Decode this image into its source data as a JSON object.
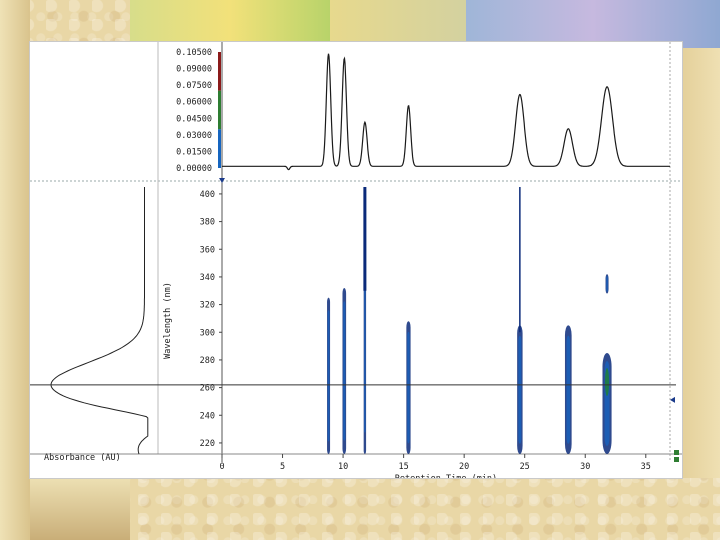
{
  "colors": {
    "background": "#ffffff",
    "trace": "#1a1a1a",
    "contour_dark": "#0a2a7a",
    "contour_mid": "#1b5fb8",
    "contour_core": "#1e7a4a",
    "axis_markers": [
      "#8b1a1a",
      "#2e7d32",
      "#1565c0"
    ]
  },
  "chart_data": [
    {
      "type": "line",
      "role": "top chromatogram trace",
      "x_range": [
        0,
        37
      ],
      "ylim": [
        0.0,
        0.105
      ],
      "y_tick_labels": [
        "0.10500",
        "0.09000",
        "0.07500",
        "0.06000",
        "0.04500",
        "0.03000",
        "0.01500",
        "0.00000"
      ],
      "y_ticks": [
        0.105,
        0.09,
        0.075,
        0.06,
        0.045,
        0.03,
        0.015,
        0.0
      ],
      "peaks": [
        {
          "rt": 8.8,
          "height": 0.102
        },
        {
          "rt": 10.1,
          "height": 0.098
        },
        {
          "rt": 11.8,
          "height": 0.04
        },
        {
          "rt": 15.4,
          "height": 0.055
        },
        {
          "rt": 24.6,
          "height": 0.065
        },
        {
          "rt": 28.6,
          "height": 0.034
        },
        {
          "rt": 31.8,
          "height": 0.072
        }
      ],
      "baseline": 0.0015
    },
    {
      "type": "line",
      "role": "left absorbance spectrum",
      "xlabel": "Absorbance (AU)",
      "ylim": [
        210,
        405
      ],
      "features": {
        "max_nm": 262,
        "min_nm": 236,
        "shoulder_nm": 300
      }
    },
    {
      "type": "heatmap",
      "role": "contour plot",
      "xlabel": "Retention Time (min)",
      "ylabel": "Wavelength (nm)",
      "xlim": [
        0,
        37
      ],
      "ylim": [
        212,
        405
      ],
      "x_ticks": [
        0,
        5,
        10,
        15,
        20,
        25,
        30,
        35
      ],
      "x_tick_labels": [
        "0",
        "5",
        "10",
        "15",
        "20",
        "25",
        "30",
        "35"
      ],
      "y_ticks": [
        220,
        240,
        260,
        280,
        300,
        320,
        340,
        360,
        380,
        400
      ],
      "y_tick_labels": [
        "220",
        "240",
        "260",
        "280",
        "300",
        "320",
        "340",
        "360",
        "380",
        "400"
      ],
      "reference_wavelength": 262,
      "bands": [
        {
          "rt": 8.8,
          "wl_min": 212,
          "wl_max": 325,
          "width": 0.25,
          "intensity": 0.6
        },
        {
          "rt": 10.1,
          "wl_min": 212,
          "wl_max": 332,
          "width": 0.3,
          "intensity": 0.6
        },
        {
          "rt": 11.8,
          "wl_min": 212,
          "wl_max": 405,
          "width": 0.2,
          "intensity": 0.5
        },
        {
          "rt": 15.4,
          "wl_min": 212,
          "wl_max": 308,
          "width": 0.35,
          "intensity": 0.6
        },
        {
          "rt": 24.6,
          "wl_min": 212,
          "wl_max": 305,
          "width": 0.45,
          "intensity": 0.8
        },
        {
          "rt": 28.6,
          "wl_min": 212,
          "wl_max": 305,
          "width": 0.55,
          "intensity": 0.85
        },
        {
          "rt": 31.8,
          "wl_min": 212,
          "wl_max": 285,
          "width": 0.75,
          "intensity": 1.0
        },
        {
          "rt": 31.8,
          "wl_min": 328,
          "wl_max": 342,
          "width": 0.25,
          "intensity": 0.7
        }
      ],
      "vertical_lines": [
        {
          "rt": 11.8,
          "wl_min": 330,
          "wl_max": 405
        },
        {
          "rt": 24.6,
          "wl_min": 300,
          "wl_max": 405
        }
      ]
    }
  ]
}
